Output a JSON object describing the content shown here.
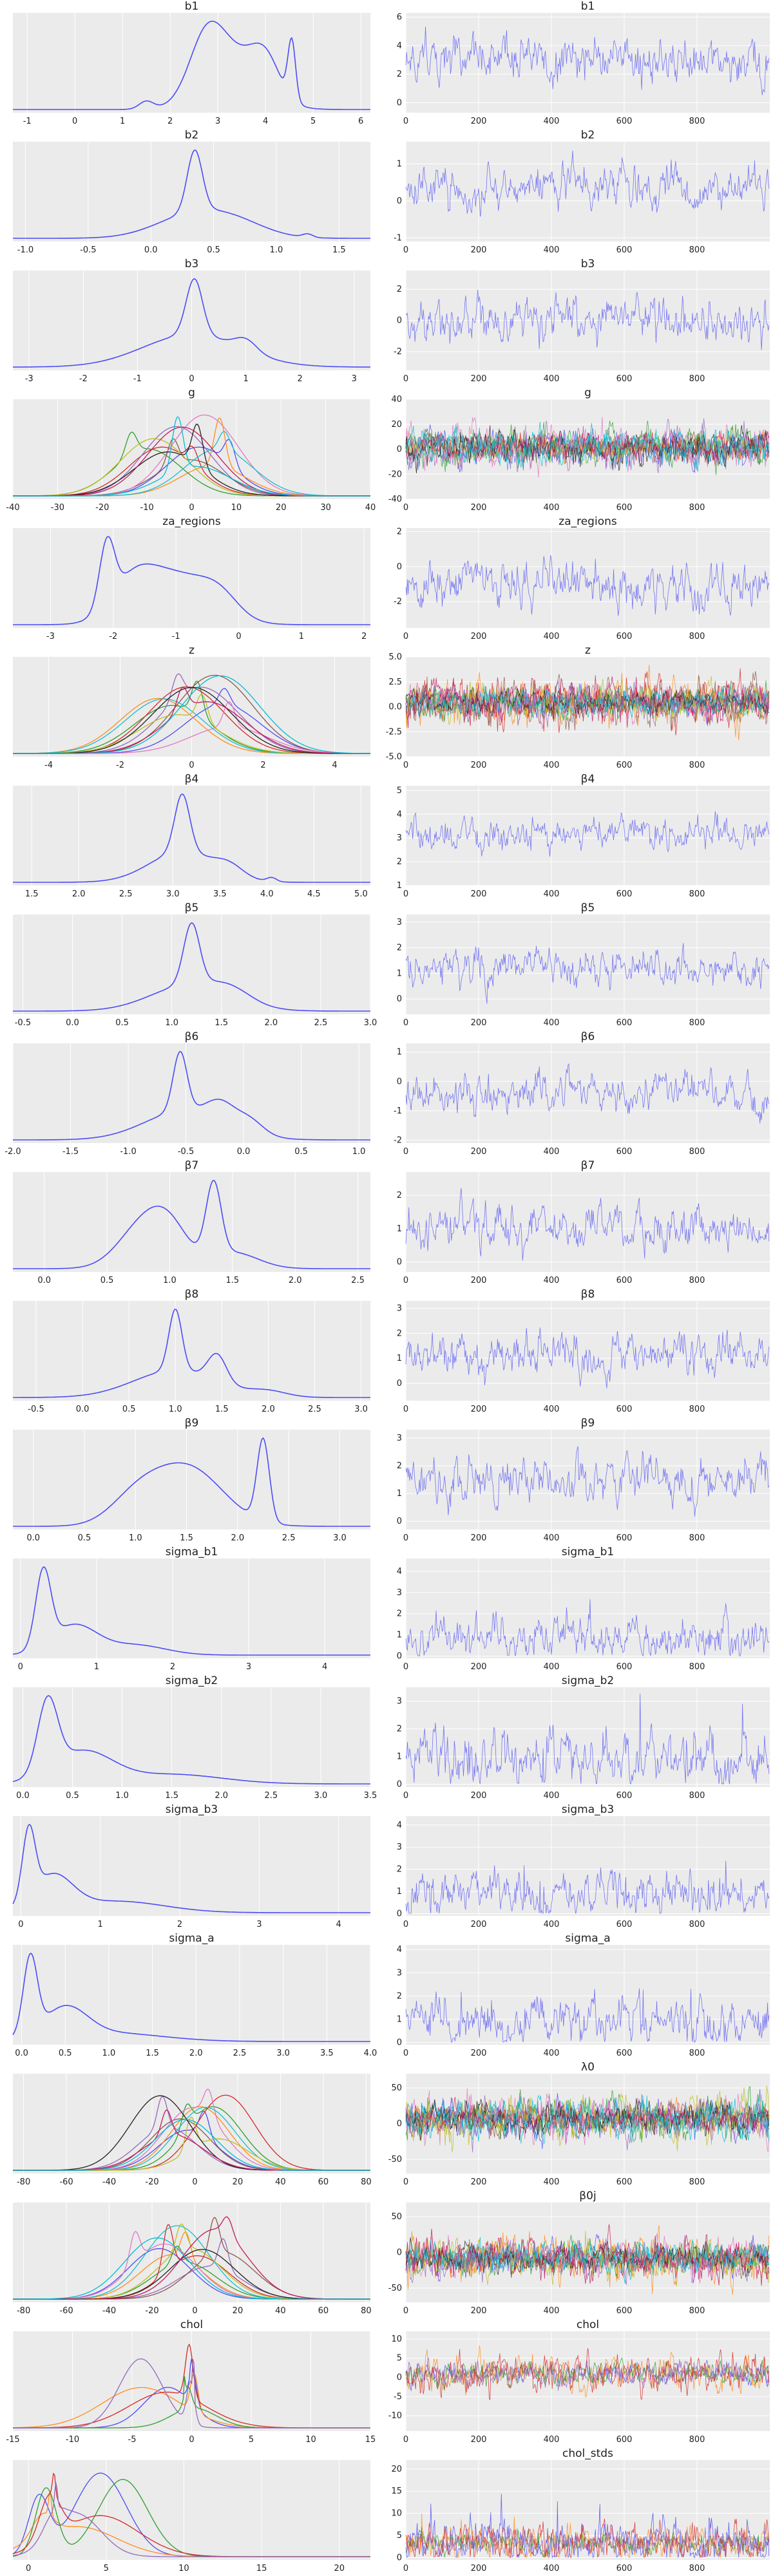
{
  "colors": {
    "background": "#ebebeb",
    "grid": "#ffffff",
    "text": "#222222",
    "multi_series": [
      "#4c4cf5",
      "#ff8c1a",
      "#2ca02c",
      "#d62728",
      "#9467bd",
      "#8c564b",
      "#e377c2",
      "#17becf",
      "#bcbd22",
      "#1f1f1f",
      "#c2185b",
      "#00bcd4"
    ]
  },
  "chart_data": [
    {
      "panel": "b1-density",
      "type": "line",
      "title": "b1",
      "x_ticks": [
        "-1",
        "0",
        "1",
        "2",
        "3",
        "4",
        "5",
        "6"
      ],
      "xlim": [
        -1.3,
        6.2
      ],
      "peaks": [
        [
          1.5,
          0.08,
          0.15
        ],
        [
          2.75,
          0.5,
          0.35
        ],
        [
          3.3,
          0.55,
          0.6
        ],
        [
          4.0,
          0.35,
          0.3
        ],
        [
          4.55,
          0.6,
          0.08
        ]
      ],
      "series_count": 1
    },
    {
      "panel": "b1-trace",
      "type": "line",
      "title": "b1",
      "x_ticks": [
        "0",
        "200",
        "400",
        "600",
        "800"
      ],
      "y_ticks": [
        "0",
        "2",
        "4",
        "6"
      ],
      "ylim": [
        -0.7,
        6.3
      ],
      "center": 2.9,
      "spread": 1.0,
      "series_count": 1
    },
    {
      "panel": "b2-density",
      "type": "line",
      "title": "b2",
      "x_ticks": [
        "-1.0",
        "-0.5",
        "0.0",
        "0.5",
        "1.0",
        "1.5"
      ],
      "xlim": [
        -1.1,
        1.75
      ],
      "peaks": [
        [
          0.35,
          0.9,
          0.06
        ],
        [
          0.35,
          0.35,
          0.3
        ],
        [
          0.7,
          0.15,
          0.25
        ],
        [
          1.25,
          0.05,
          0.04
        ]
      ],
      "series_count": 1
    },
    {
      "panel": "b2-trace",
      "type": "line",
      "title": "b2",
      "x_ticks": [
        "0",
        "200",
        "400",
        "600",
        "800"
      ],
      "y_ticks": [
        "-1",
        "0",
        "1"
      ],
      "ylim": [
        -1.1,
        1.6
      ],
      "center": 0.35,
      "spread": 0.35,
      "series_count": 1
    },
    {
      "panel": "b3-density",
      "type": "line",
      "title": "b3",
      "x_ticks": [
        "-3",
        "-2",
        "-1",
        "0",
        "1",
        "2",
        "3"
      ],
      "xlim": [
        -3.3,
        3.3
      ],
      "peaks": [
        [
          0.05,
          0.6,
          0.15
        ],
        [
          0.0,
          0.35,
          0.9
        ],
        [
          1.0,
          0.12,
          0.2
        ]
      ],
      "series_count": 1
    },
    {
      "panel": "b3-trace",
      "type": "line",
      "title": "b3",
      "x_ticks": [
        "0",
        "200",
        "400",
        "600",
        "800"
      ],
      "y_ticks": [
        "-2",
        "0",
        "2"
      ],
      "ylim": [
        -3.2,
        3.2
      ],
      "center": 0.05,
      "spread": 0.9,
      "series_count": 1
    },
    {
      "panel": "g-density",
      "type": "line",
      "title": "g",
      "x_ticks": [
        "-40",
        "-30",
        "-20",
        "-10",
        "0",
        "10",
        "20",
        "30",
        "40"
      ],
      "xlim": [
        -40,
        40
      ],
      "peaks": [
        [
          -2,
          0.6,
          8
        ]
      ],
      "series_count": 12
    },
    {
      "panel": "g-trace",
      "type": "line",
      "title": "g",
      "x_ticks": [
        "0",
        "200",
        "400",
        "600",
        "800"
      ],
      "y_ticks": [
        "-40",
        "-20",
        "0",
        "20",
        "40"
      ],
      "ylim": [
        -40,
        40
      ],
      "center": 0,
      "spread": 8,
      "series_count": 12
    },
    {
      "panel": "za_regions-density",
      "type": "line",
      "title": "za_regions",
      "x_ticks": [
        "-3",
        "-2",
        "-1",
        "0",
        "1",
        "2"
      ],
      "xlim": [
        -3.6,
        2.1
      ],
      "peaks": [
        [
          -2.1,
          0.85,
          0.12
        ],
        [
          -1.7,
          0.45,
          0.35
        ],
        [
          -1.0,
          0.65,
          0.55
        ],
        [
          -0.3,
          0.25,
          0.3
        ]
      ],
      "series_count": 1
    },
    {
      "panel": "za_regions-trace",
      "type": "line",
      "title": "za_regions",
      "x_ticks": [
        "0",
        "200",
        "400",
        "600",
        "800"
      ],
      "y_ticks": [
        "-2",
        "0",
        "2"
      ],
      "ylim": [
        -3.5,
        2.2
      ],
      "center": -1.0,
      "spread": 0.8,
      "series_count": 1
    },
    {
      "panel": "z-density",
      "type": "line",
      "title": "z",
      "x_ticks": [
        "-4",
        "-2",
        "0",
        "2",
        "4"
      ],
      "xlim": [
        -5,
        5
      ],
      "peaks": [
        [
          0,
          0.4,
          1
        ]
      ],
      "series_count": 12
    },
    {
      "panel": "z-trace",
      "type": "line",
      "title": "z",
      "x_ticks": [
        "0",
        "200",
        "400",
        "600",
        "800"
      ],
      "y_ticks": [
        "-5.0",
        "-2.5",
        "0.0",
        "2.5",
        "5.0"
      ],
      "ylim": [
        -5,
        5
      ],
      "center": 0,
      "spread": 1.1,
      "series_count": 12
    },
    {
      "panel": "β4-density",
      "type": "line",
      "title": "β4",
      "x_ticks": [
        "1.5",
        "2.0",
        "2.5",
        "3.0",
        "3.5",
        "4.0",
        "4.5",
        "5.0"
      ],
      "xlim": [
        1.3,
        5.1
      ],
      "peaks": [
        [
          3.1,
          0.85,
          0.08
        ],
        [
          3.1,
          0.45,
          0.35
        ],
        [
          3.6,
          0.15,
          0.15
        ],
        [
          4.05,
          0.06,
          0.05
        ]
      ],
      "series_count": 1
    },
    {
      "panel": "β4-trace",
      "type": "line",
      "title": "β4",
      "x_ticks": [
        "0",
        "200",
        "400",
        "600",
        "800"
      ],
      "y_ticks": [
        "1",
        "2",
        "3",
        "4",
        "5"
      ],
      "ylim": [
        1,
        5.2
      ],
      "center": 3.15,
      "spread": 0.4,
      "series_count": 1
    },
    {
      "panel": "β5-density",
      "type": "line",
      "title": "β5",
      "x_ticks": [
        "-0.5",
        "0.0",
        "0.5",
        "1.0",
        "1.5",
        "2.0",
        "2.5",
        "3.0"
      ],
      "xlim": [
        -0.6,
        3.0
      ],
      "peaks": [
        [
          1.2,
          0.9,
          0.08
        ],
        [
          1.2,
          0.4,
          0.4
        ],
        [
          1.6,
          0.15,
          0.2
        ]
      ],
      "series_count": 1
    },
    {
      "panel": "β5-trace",
      "type": "line",
      "title": "β5",
      "x_ticks": [
        "0",
        "200",
        "400",
        "600",
        "800"
      ],
      "y_ticks": [
        "0",
        "1",
        "2",
        "3"
      ],
      "ylim": [
        -0.6,
        3.3
      ],
      "center": 1.2,
      "spread": 0.45,
      "series_count": 1
    },
    {
      "panel": "β6-density",
      "type": "line",
      "title": "β6",
      "x_ticks": [
        "-2.0",
        "-1.5",
        "-1.0",
        "-0.5",
        "0.0",
        "0.5",
        "1.0"
      ],
      "xlim": [
        -2.0,
        1.1
      ],
      "peaks": [
        [
          -0.55,
          0.8,
          0.06
        ],
        [
          -0.5,
          0.4,
          0.35
        ],
        [
          -0.2,
          0.25,
          0.12
        ],
        [
          0.05,
          0.18,
          0.12
        ]
      ],
      "series_count": 1
    },
    {
      "panel": "β6-trace",
      "type": "line",
      "title": "β6",
      "x_ticks": [
        "0",
        "200",
        "400",
        "600",
        "800"
      ],
      "y_ticks": [
        "-2",
        "-1",
        "0",
        "1"
      ],
      "ylim": [
        -2.1,
        1.3
      ],
      "center": -0.4,
      "spread": 0.4,
      "series_count": 1
    },
    {
      "panel": "β7-density",
      "type": "line",
      "title": "β7",
      "x_ticks": [
        "0.0",
        "0.5",
        "1.0",
        "1.5",
        "2.0",
        "2.5"
      ],
      "xlim": [
        -0.25,
        2.6
      ],
      "peaks": [
        [
          0.8,
          0.55,
          0.2
        ],
        [
          1.0,
          0.35,
          0.15
        ],
        [
          1.35,
          0.9,
          0.06
        ],
        [
          1.5,
          0.2,
          0.2
        ]
      ],
      "series_count": 1
    },
    {
      "panel": "β7-trace",
      "type": "line",
      "title": "β7",
      "x_ticks": [
        "0",
        "200",
        "400",
        "600",
        "800"
      ],
      "y_ticks": [
        "0",
        "1",
        "2"
      ],
      "ylim": [
        -0.3,
        2.7
      ],
      "center": 1.0,
      "spread": 0.4,
      "series_count": 1
    },
    {
      "panel": "β8-density",
      "type": "line",
      "title": "β8",
      "x_ticks": [
        "-0.5",
        "0.0",
        "0.5",
        "1.0",
        "1.5",
        "2.0",
        "2.5",
        "3.0"
      ],
      "xlim": [
        -0.75,
        3.1
      ],
      "peaks": [
        [
          1.0,
          0.9,
          0.07
        ],
        [
          1.0,
          0.4,
          0.45
        ],
        [
          1.45,
          0.4,
          0.1
        ],
        [
          2.0,
          0.08,
          0.2
        ]
      ],
      "series_count": 1
    },
    {
      "panel": "β8-trace",
      "type": "line",
      "title": "β8",
      "x_ticks": [
        "0",
        "200",
        "400",
        "600",
        "800"
      ],
      "y_ticks": [
        "0",
        "1",
        "2",
        "3"
      ],
      "ylim": [
        -0.7,
        3.3
      ],
      "center": 1.15,
      "spread": 0.5,
      "series_count": 1
    },
    {
      "panel": "β9-density",
      "type": "line",
      "title": "β9",
      "x_ticks": [
        "0.0",
        "0.5",
        "1.0",
        "1.5",
        "2.0",
        "2.5",
        "3.0"
      ],
      "xlim": [
        -0.2,
        3.3
      ],
      "peaks": [
        [
          1.5,
          0.65,
          0.35
        ],
        [
          1.0,
          0.25,
          0.25
        ],
        [
          2.25,
          0.9,
          0.06
        ]
      ],
      "series_count": 1
    },
    {
      "panel": "β9-trace",
      "type": "line",
      "title": "β9",
      "x_ticks": [
        "0",
        "200",
        "400",
        "600",
        "800"
      ],
      "y_ticks": [
        "0",
        "1",
        "2",
        "3"
      ],
      "ylim": [
        -0.3,
        3.3
      ],
      "center": 1.5,
      "spread": 0.5,
      "series_count": 1
    },
    {
      "panel": "sigma_b1-density",
      "type": "line",
      "title": "sigma_b1",
      "x_ticks": [
        "0",
        "1",
        "2",
        "3",
        "4"
      ],
      "xlim": [
        -0.1,
        4.6
      ],
      "peaks": [
        [
          0.3,
          0.9,
          0.1
        ],
        [
          0.7,
          0.35,
          0.3
        ],
        [
          1.5,
          0.12,
          0.4
        ]
      ],
      "series_count": 1
    },
    {
      "panel": "sigma_b1-trace",
      "type": "line",
      "title": "sigma_b1",
      "x_ticks": [
        "0",
        "200",
        "400",
        "600",
        "800"
      ],
      "y_ticks": [
        "0",
        "1",
        "2",
        "3",
        "4"
      ],
      "ylim": [
        -0.1,
        4.6
      ],
      "center": 0.9,
      "spread": 0.6,
      "series_count": 1,
      "positive": true
    },
    {
      "panel": "sigma_b2-density",
      "type": "line",
      "title": "sigma_b2",
      "x_ticks": [
        "0.0",
        "0.5",
        "1.0",
        "1.5",
        "2.0",
        "2.5",
        "3.0",
        "3.5"
      ],
      "xlim": [
        -0.1,
        3.5
      ],
      "peaks": [
        [
          0.25,
          0.9,
          0.1
        ],
        [
          0.6,
          0.4,
          0.3
        ],
        [
          1.5,
          0.12,
          0.5
        ]
      ],
      "series_count": 1
    },
    {
      "panel": "sigma_b2-trace",
      "type": "line",
      "title": "sigma_b2",
      "x_ticks": [
        "0",
        "200",
        "400",
        "600",
        "800"
      ],
      "y_ticks": [
        "0",
        "1",
        "2",
        "3"
      ],
      "ylim": [
        -0.1,
        3.5
      ],
      "center": 0.9,
      "spread": 0.6,
      "series_count": 1,
      "positive": true
    },
    {
      "panel": "sigma_b3-density",
      "type": "line",
      "title": "sigma_b3",
      "x_ticks": [
        "0",
        "1",
        "2",
        "3",
        "4"
      ],
      "xlim": [
        -0.1,
        4.4
      ],
      "peaks": [
        [
          0.1,
          0.9,
          0.08
        ],
        [
          0.4,
          0.45,
          0.25
        ],
        [
          1.2,
          0.15,
          0.6
        ]
      ],
      "series_count": 1
    },
    {
      "panel": "sigma_b3-trace",
      "type": "line",
      "title": "sigma_b3",
      "x_ticks": [
        "0",
        "200",
        "400",
        "600",
        "800"
      ],
      "y_ticks": [
        "0",
        "1",
        "2",
        "3",
        "4"
      ],
      "ylim": [
        -0.1,
        4.4
      ],
      "center": 0.9,
      "spread": 0.6,
      "series_count": 1,
      "positive": true
    },
    {
      "panel": "sigma_a-density",
      "type": "line",
      "title": "sigma_a",
      "x_ticks": [
        "0.0",
        "0.5",
        "1.0",
        "1.5",
        "2.0",
        "2.5",
        "3.0",
        "3.5",
        "4.0"
      ],
      "xlim": [
        -0.1,
        4.0
      ],
      "peaks": [
        [
          0.1,
          0.9,
          0.08
        ],
        [
          0.5,
          0.35,
          0.25
        ],
        [
          1.0,
          0.1,
          0.6
        ]
      ],
      "series_count": 1
    },
    {
      "panel": "sigma_a-trace",
      "type": "line",
      "title": "sigma_a",
      "x_ticks": [
        "0",
        "200",
        "400",
        "600",
        "800"
      ],
      "y_ticks": [
        "0",
        "1",
        "2",
        "3",
        "4"
      ],
      "ylim": [
        -0.1,
        4.2
      ],
      "center": 0.9,
      "spread": 0.6,
      "series_count": 1,
      "positive": true
    },
    {
      "panel": "λ0-density",
      "type": "line",
      "title": "",
      "x_ticks": [
        "-80",
        "-60",
        "-40",
        "-20",
        "0",
        "20",
        "40",
        "60",
        "80"
      ],
      "xlim": [
        -85,
        82
      ],
      "peaks": [
        [
          -2,
          0.6,
          15
        ]
      ],
      "series_count": 12
    },
    {
      "panel": "λ0-trace",
      "type": "line",
      "title": "λ0",
      "x_ticks": [
        "0",
        "200",
        "400",
        "600",
        "800"
      ],
      "y_ticks": [
        "-50",
        "0",
        "50"
      ],
      "ylim": [
        -70,
        70
      ],
      "center": 0,
      "spread": 15,
      "series_count": 12
    },
    {
      "panel": "β0j-density",
      "type": "line",
      "title": "",
      "x_ticks": [
        "-80",
        "-60",
        "-40",
        "-20",
        "0",
        "20",
        "40",
        "60",
        "80"
      ],
      "xlim": [
        -85,
        82
      ],
      "peaks": [
        [
          -2,
          0.6,
          15
        ]
      ],
      "series_count": 12
    },
    {
      "panel": "β0j-trace",
      "type": "line",
      "title": "β0j",
      "x_ticks": [
        "0",
        "200",
        "400",
        "600",
        "800"
      ],
      "y_ticks": [
        "-50",
        "0",
        "50"
      ],
      "ylim": [
        -70,
        70
      ],
      "center": 0,
      "spread": 15,
      "series_count": 12
    },
    {
      "panel": "chol-density",
      "type": "line",
      "title": "chol",
      "x_ticks": [
        "-15",
        "-10",
        "-5",
        "0",
        "5",
        "10",
        "15"
      ],
      "xlim": [
        -15,
        15
      ],
      "peaks": [
        [
          0,
          0.9,
          0.3
        ],
        [
          -1,
          0.15,
          3
        ]
      ],
      "series_count": 5
    },
    {
      "panel": "chol-trace",
      "type": "line",
      "title": "chol",
      "x_ticks": [
        "0",
        "200",
        "400",
        "600",
        "800"
      ],
      "y_ticks": [
        "-10",
        "-5",
        "0",
        "5",
        "10"
      ],
      "ylim": [
        -14,
        12
      ],
      "center": 2,
      "spread": 2.5,
      "series_count": 5
    },
    {
      "panel": "chol_stds-density",
      "type": "line",
      "title": "",
      "x_ticks": [
        "0",
        "5",
        "10",
        "15",
        "20"
      ],
      "xlim": [
        -1,
        22
      ],
      "peaks": [
        [
          1,
          0.9,
          0.6
        ],
        [
          4,
          0.25,
          2
        ]
      ],
      "series_count": 5
    },
    {
      "panel": "chol_stds-trace",
      "type": "line",
      "title": "chol_stds",
      "x_ticks": [
        "0",
        "200",
        "400",
        "600",
        "800"
      ],
      "y_ticks": [
        "0",
        "5",
        "10",
        "15",
        "20"
      ],
      "ylim": [
        -0.5,
        22
      ],
      "center": 4,
      "spread": 2.5,
      "series_count": 5,
      "positive": true
    }
  ]
}
